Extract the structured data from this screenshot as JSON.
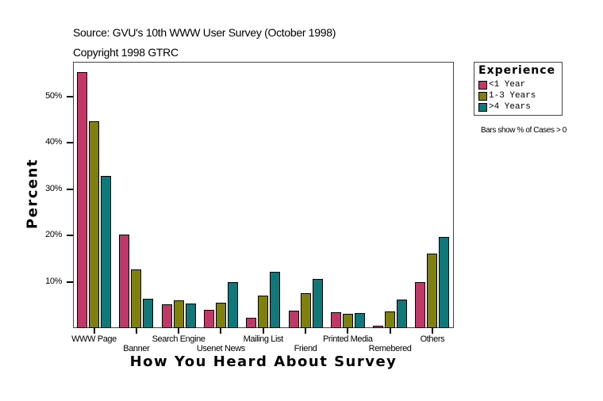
{
  "header": {
    "source": "Source: GVU's 10th WWW User Survey (October 1998)",
    "copyright": "Copyright 1998 GTRC"
  },
  "legend": {
    "title": "Experience",
    "items": [
      {
        "label": "<1 Year",
        "color": "#c03868"
      },
      {
        "label": "1-3 Years",
        "color": "#808010"
      },
      {
        "label": ">4 Years",
        "color": "#107878"
      }
    ],
    "note": "Bars show % of Cases > 0"
  },
  "axes": {
    "ylabel": "Percent",
    "xlabel": "How You Heard About Survey",
    "yticks": [
      "10%",
      "20%",
      "30%",
      "40%",
      "50%"
    ]
  },
  "chart_data": {
    "type": "bar",
    "title": "",
    "subtitle": "Source: GVU's 10th WWW User Survey (October 1998) / Copyright 1998 GTRC",
    "xlabel": "How You Heard About Survey",
    "ylabel": "Percent",
    "ylim": [
      0,
      58
    ],
    "grid": false,
    "legend_position": "right",
    "legend_title": "Experience",
    "categories": [
      "WWW Page",
      "Banner",
      "Search Engine",
      "Usenet News",
      "Mailing List",
      "Friend",
      "Printed Media",
      "Remebered",
      "Others"
    ],
    "series": [
      {
        "name": "<1 Year",
        "color": "#c03868",
        "values": [
          55.2,
          20.2,
          5.1,
          3.9,
          2.2,
          3.8,
          3.4,
          0.5,
          9.9
        ]
      },
      {
        "name": "1-3 Years",
        "color": "#808010",
        "values": [
          44.6,
          12.6,
          6.0,
          5.5,
          7.0,
          7.5,
          3.1,
          3.6,
          16.1
        ]
      },
      {
        "name": ">4 Years",
        "color": "#107878",
        "values": [
          32.8,
          6.3,
          5.3,
          9.9,
          12.1,
          10.6,
          3.2,
          6.2,
          19.7
        ]
      }
    ],
    "annotations": [
      "Bars show % of Cases > 0"
    ]
  }
}
